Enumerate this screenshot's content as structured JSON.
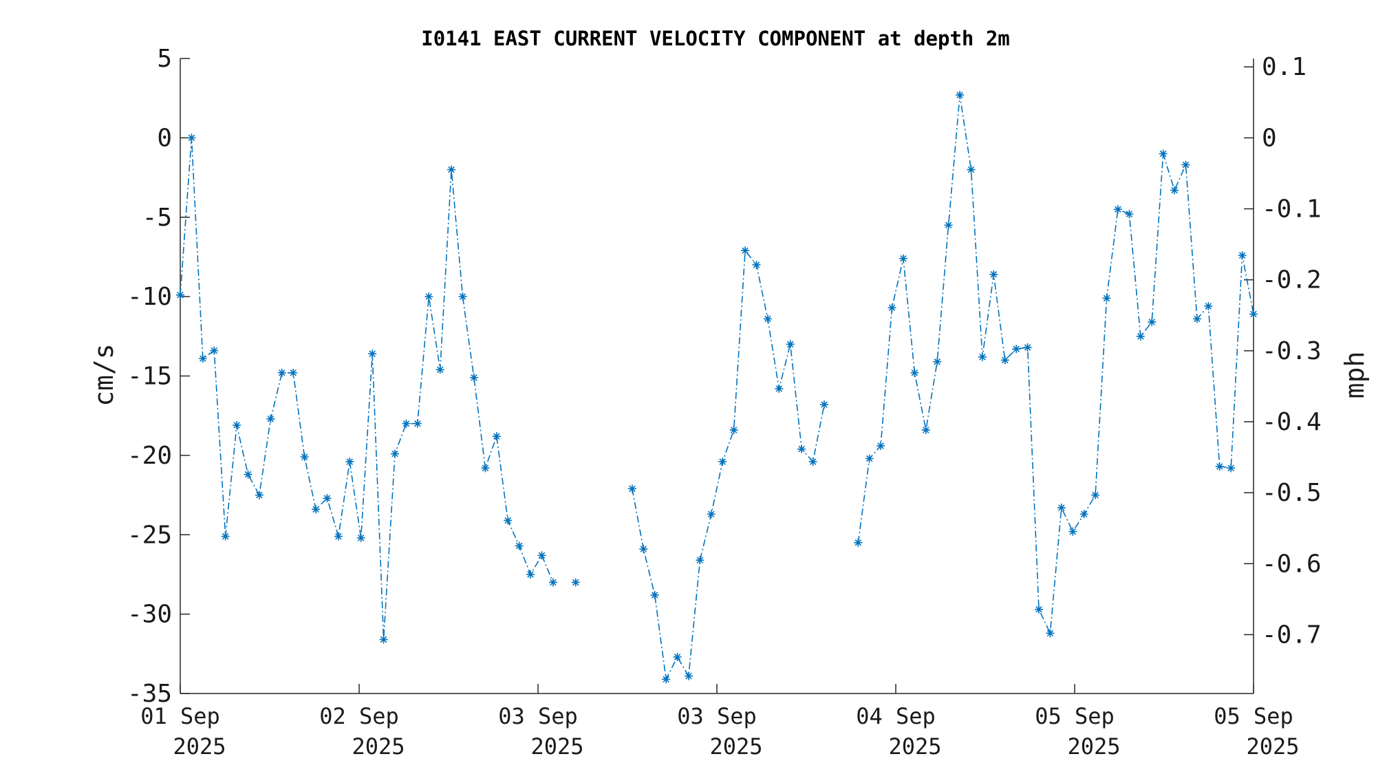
{
  "chart_data": {
    "type": "line",
    "title": "I0141 EAST CURRENT VELOCITY COMPONENT at depth 2m",
    "ylabel_left": "cm/s",
    "ylabel_right": "mph",
    "ylim": [
      -35,
      5
    ],
    "y_ticks": [
      "5",
      "0",
      "-5",
      "-10",
      "-15",
      "-20",
      "-25",
      "-30",
      "-35"
    ],
    "y2_ticks": [
      "0.1",
      "0",
      "-0.1",
      "-0.2",
      "-0.3",
      "-0.4",
      "-0.5",
      "-0.6",
      "-0.7"
    ],
    "x_ticks": [
      {
        "day": "01 Sep",
        "year": "2025"
      },
      {
        "day": "02 Sep",
        "year": "2025"
      },
      {
        "day": "03 Sep",
        "year": "2025"
      },
      {
        "day": "03 Sep",
        "year": "2025"
      },
      {
        "day": "04 Sep",
        "year": "2025"
      },
      {
        "day": "05 Sep",
        "year": "2025"
      },
      {
        "day": "05 Sep",
        "year": "2025"
      }
    ],
    "series": [
      {
        "values": [
          -9.9,
          0,
          -13.9,
          -13.4,
          -25.1,
          -18.1,
          -21.2,
          -22.5,
          -17.7,
          -14.8,
          -14.8,
          -20.1,
          -23.4,
          -22.7,
          -25.1,
          -20.4,
          -25.2,
          -13.6,
          -31.6,
          -19.9,
          -18.0,
          -18.0,
          -10.0,
          -14.6,
          -2.0,
          -10.0,
          -15.1,
          -20.8,
          -18.8,
          -24.1,
          -25.7,
          -27.5,
          -26.3,
          -28.0,
          null,
          -28.0,
          null,
          null,
          null,
          null,
          -22.1,
          -25.9,
          -28.8,
          -34.1,
          -32.7,
          -33.9,
          -26.6,
          -23.7,
          -20.4,
          -18.4,
          -7.1,
          -8.0,
          -11.4,
          -15.8,
          -13.0,
          -19.6,
          -20.4,
          -16.8,
          null,
          null,
          -25.5,
          -20.2,
          -19.4,
          -10.7,
          -7.6,
          -14.8,
          -18.4,
          -14.1,
          -5.5,
          2.7,
          -2.0,
          -13.8,
          -8.6,
          -14.0,
          -13.3,
          -13.2,
          -29.7,
          -31.2,
          -23.3,
          -24.8,
          -23.7,
          -22.5,
          -10.1,
          -4.5,
          -4.8,
          -12.5,
          -11.6,
          -1.0,
          -3.3,
          -1.7,
          -11.4,
          -10.6,
          -20.7,
          -20.8,
          -7.4,
          -11.1
        ]
      }
    ]
  }
}
